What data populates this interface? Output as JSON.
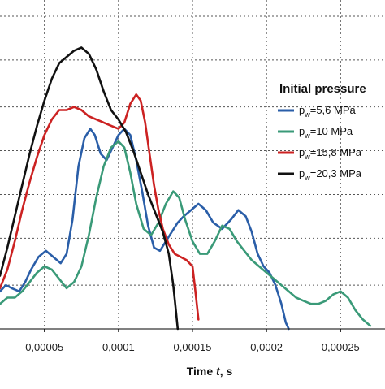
{
  "chart_data": {
    "type": "line",
    "xlabel_main": "Time ",
    "xlabel_var": "t",
    "xlabel_unit": ", s",
    "xlim": [
      2e-05,
      0.00028
    ],
    "ylim": [
      0,
      1
    ],
    "grid": true,
    "x_ticks": [
      {
        "value": 5e-05,
        "label": "0,00005"
      },
      {
        "value": 0.0001,
        "label": "0,0001"
      },
      {
        "value": 0.00015,
        "label": "0,00015"
      },
      {
        "value": 0.0002,
        "label": "0,0002"
      },
      {
        "value": 0.00025,
        "label": "0,00025"
      }
    ],
    "y_grid": [
      0.14,
      0.29,
      0.43,
      0.57,
      0.71,
      0.86,
      1.0
    ],
    "legend": {
      "title": "Initial pressure",
      "placement": "right",
      "entries": [
        {
          "prefix": "p",
          "sub": "w",
          "value": "=5,6 MPa",
          "color": "#2a5ea8"
        },
        {
          "prefix": "p",
          "sub": "w",
          "value": "=10 MPa",
          "color": "#3a9a78"
        },
        {
          "prefix": "p",
          "sub": "w",
          "value": "=15,8 MPa",
          "color": "#cc2222"
        },
        {
          "prefix": "p",
          "sub": "w",
          "value": "=20,3 MPa",
          "color": "#111111"
        }
      ]
    },
    "series": [
      {
        "name": "pw=5,6 MPa",
        "color": "#2a5ea8",
        "points": [
          [
            2e-05,
            0.12
          ],
          [
            2.4e-05,
            0.14
          ],
          [
            2.8e-05,
            0.13
          ],
          [
            3.3e-05,
            0.12
          ],
          [
            3.7e-05,
            0.15
          ],
          [
            4.1e-05,
            0.19
          ],
          [
            4.6e-05,
            0.23
          ],
          [
            5.1e-05,
            0.25
          ],
          [
            5.6e-05,
            0.23
          ],
          [
            6.1e-05,
            0.21
          ],
          [
            6.5e-05,
            0.24
          ],
          [
            6.9e-05,
            0.35
          ],
          [
            7.3e-05,
            0.52
          ],
          [
            7.7e-05,
            0.61
          ],
          [
            8.1e-05,
            0.64
          ],
          [
            8.4e-05,
            0.62
          ],
          [
            8.8e-05,
            0.56
          ],
          [
            9.2e-05,
            0.54
          ],
          [
            9.6e-05,
            0.58
          ],
          [
            0.0001,
            0.62
          ],
          [
            0.000104,
            0.64
          ],
          [
            0.000108,
            0.62
          ],
          [
            0.000112,
            0.54
          ],
          [
            0.000116,
            0.44
          ],
          [
            0.00012,
            0.33
          ],
          [
            0.000124,
            0.26
          ],
          [
            0.000128,
            0.25
          ],
          [
            0.000132,
            0.28
          ],
          [
            0.000136,
            0.31
          ],
          [
            0.00014,
            0.34
          ],
          [
            0.000144,
            0.36
          ],
          [
            0.000149,
            0.38
          ],
          [
            0.000154,
            0.4
          ],
          [
            0.000159,
            0.38
          ],
          [
            0.000164,
            0.34
          ],
          [
            0.00017,
            0.32
          ],
          [
            0.000176,
            0.35
          ],
          [
            0.000181,
            0.38
          ],
          [
            0.000186,
            0.36
          ],
          [
            0.00019,
            0.31
          ],
          [
            0.000194,
            0.24
          ],
          [
            0.000198,
            0.2
          ],
          [
            0.000202,
            0.18
          ],
          [
            0.000206,
            0.14
          ],
          [
            0.00021,
            0.08
          ],
          [
            0.000213,
            0.02
          ],
          [
            0.000215,
            0.0
          ]
        ]
      },
      {
        "name": "pw=10 MPa",
        "color": "#3a9a78",
        "points": [
          [
            2e-05,
            0.08
          ],
          [
            2.5e-05,
            0.1
          ],
          [
            3e-05,
            0.1
          ],
          [
            3.5e-05,
            0.12
          ],
          [
            4e-05,
            0.15
          ],
          [
            4.5e-05,
            0.18
          ],
          [
            5e-05,
            0.2
          ],
          [
            5.5e-05,
            0.19
          ],
          [
            6e-05,
            0.16
          ],
          [
            6.5e-05,
            0.13
          ],
          [
            7e-05,
            0.15
          ],
          [
            7.5e-05,
            0.2
          ],
          [
            8e-05,
            0.3
          ],
          [
            8.5e-05,
            0.42
          ],
          [
            9e-05,
            0.52
          ],
          [
            9.5e-05,
            0.58
          ],
          [
            0.0001,
            0.6
          ],
          [
            0.000104,
            0.58
          ],
          [
            0.000108,
            0.5
          ],
          [
            0.000112,
            0.4
          ],
          [
            0.000117,
            0.32
          ],
          [
            0.000122,
            0.3
          ],
          [
            0.000127,
            0.34
          ],
          [
            0.000132,
            0.4
          ],
          [
            0.000137,
            0.44
          ],
          [
            0.000141,
            0.42
          ],
          [
            0.000145,
            0.35
          ],
          [
            0.00015,
            0.28
          ],
          [
            0.000155,
            0.24
          ],
          [
            0.00016,
            0.24
          ],
          [
            0.000165,
            0.28
          ],
          [
            0.00017,
            0.33
          ],
          [
            0.000175,
            0.32
          ],
          [
            0.00018,
            0.28
          ],
          [
            0.000185,
            0.25
          ],
          [
            0.00019,
            0.22
          ],
          [
            0.000195,
            0.2
          ],
          [
            0.0002,
            0.18
          ],
          [
            0.000205,
            0.16
          ],
          [
            0.00021,
            0.14
          ],
          [
            0.000215,
            0.12
          ],
          [
            0.00022,
            0.1
          ],
          [
            0.000225,
            0.09
          ],
          [
            0.00023,
            0.08
          ],
          [
            0.000235,
            0.08
          ],
          [
            0.00024,
            0.09
          ],
          [
            0.000245,
            0.11
          ],
          [
            0.00025,
            0.12
          ],
          [
            0.000255,
            0.1
          ],
          [
            0.00026,
            0.06
          ],
          [
            0.000265,
            0.03
          ],
          [
            0.00027,
            0.01
          ]
        ]
      },
      {
        "name": "pw=15,8 MPa",
        "color": "#cc2222",
        "points": [
          [
            2e-05,
            0.13
          ],
          [
            2.5e-05,
            0.19
          ],
          [
            3e-05,
            0.28
          ],
          [
            3.5e-05,
            0.38
          ],
          [
            4e-05,
            0.47
          ],
          [
            4.5e-05,
            0.55
          ],
          [
            5e-05,
            0.62
          ],
          [
            5.5e-05,
            0.67
          ],
          [
            6e-05,
            0.7
          ],
          [
            6.5e-05,
            0.7
          ],
          [
            7e-05,
            0.71
          ],
          [
            7.5e-05,
            0.7
          ],
          [
            8e-05,
            0.68
          ],
          [
            8.5e-05,
            0.67
          ],
          [
            9e-05,
            0.66
          ],
          [
            9.5e-05,
            0.65
          ],
          [
            0.0001,
            0.64
          ],
          [
            0.000104,
            0.66
          ],
          [
            0.000108,
            0.72
          ],
          [
            0.000112,
            0.75
          ],
          [
            0.000115,
            0.73
          ],
          [
            0.000118,
            0.66
          ],
          [
            0.000121,
            0.56
          ],
          [
            0.000124,
            0.46
          ],
          [
            0.000127,
            0.38
          ],
          [
            0.00013,
            0.32
          ],
          [
            0.000134,
            0.27
          ],
          [
            0.000138,
            0.24
          ],
          [
            0.000142,
            0.23
          ],
          [
            0.000146,
            0.22
          ],
          [
            0.00015,
            0.2
          ],
          [
            0.000152,
            0.12
          ],
          [
            0.000154,
            0.03
          ]
        ]
      },
      {
        "name": "pw=20,3 MPa",
        "color": "#111111",
        "points": [
          [
            2e-05,
            0.17
          ],
          [
            2.5e-05,
            0.26
          ],
          [
            3e-05,
            0.36
          ],
          [
            3.5e-05,
            0.46
          ],
          [
            4e-05,
            0.56
          ],
          [
            4.5e-05,
            0.65
          ],
          [
            5e-05,
            0.73
          ],
          [
            5.5e-05,
            0.8
          ],
          [
            6e-05,
            0.85
          ],
          [
            6.5e-05,
            0.87
          ],
          [
            7e-05,
            0.89
          ],
          [
            7.5e-05,
            0.9
          ],
          [
            8e-05,
            0.88
          ],
          [
            8.5e-05,
            0.83
          ],
          [
            9e-05,
            0.76
          ],
          [
            9.5e-05,
            0.7
          ],
          [
            0.0001,
            0.67
          ],
          [
            0.000105,
            0.63
          ],
          [
            0.00011,
            0.57
          ],
          [
            0.000115,
            0.5
          ],
          [
            0.00012,
            0.43
          ],
          [
            0.000125,
            0.37
          ],
          [
            0.00013,
            0.31
          ],
          [
            0.000134,
            0.24
          ],
          [
            0.000137,
            0.14
          ],
          [
            0.000139,
            0.05
          ],
          [
            0.00014,
            0.0
          ]
        ]
      }
    ]
  }
}
